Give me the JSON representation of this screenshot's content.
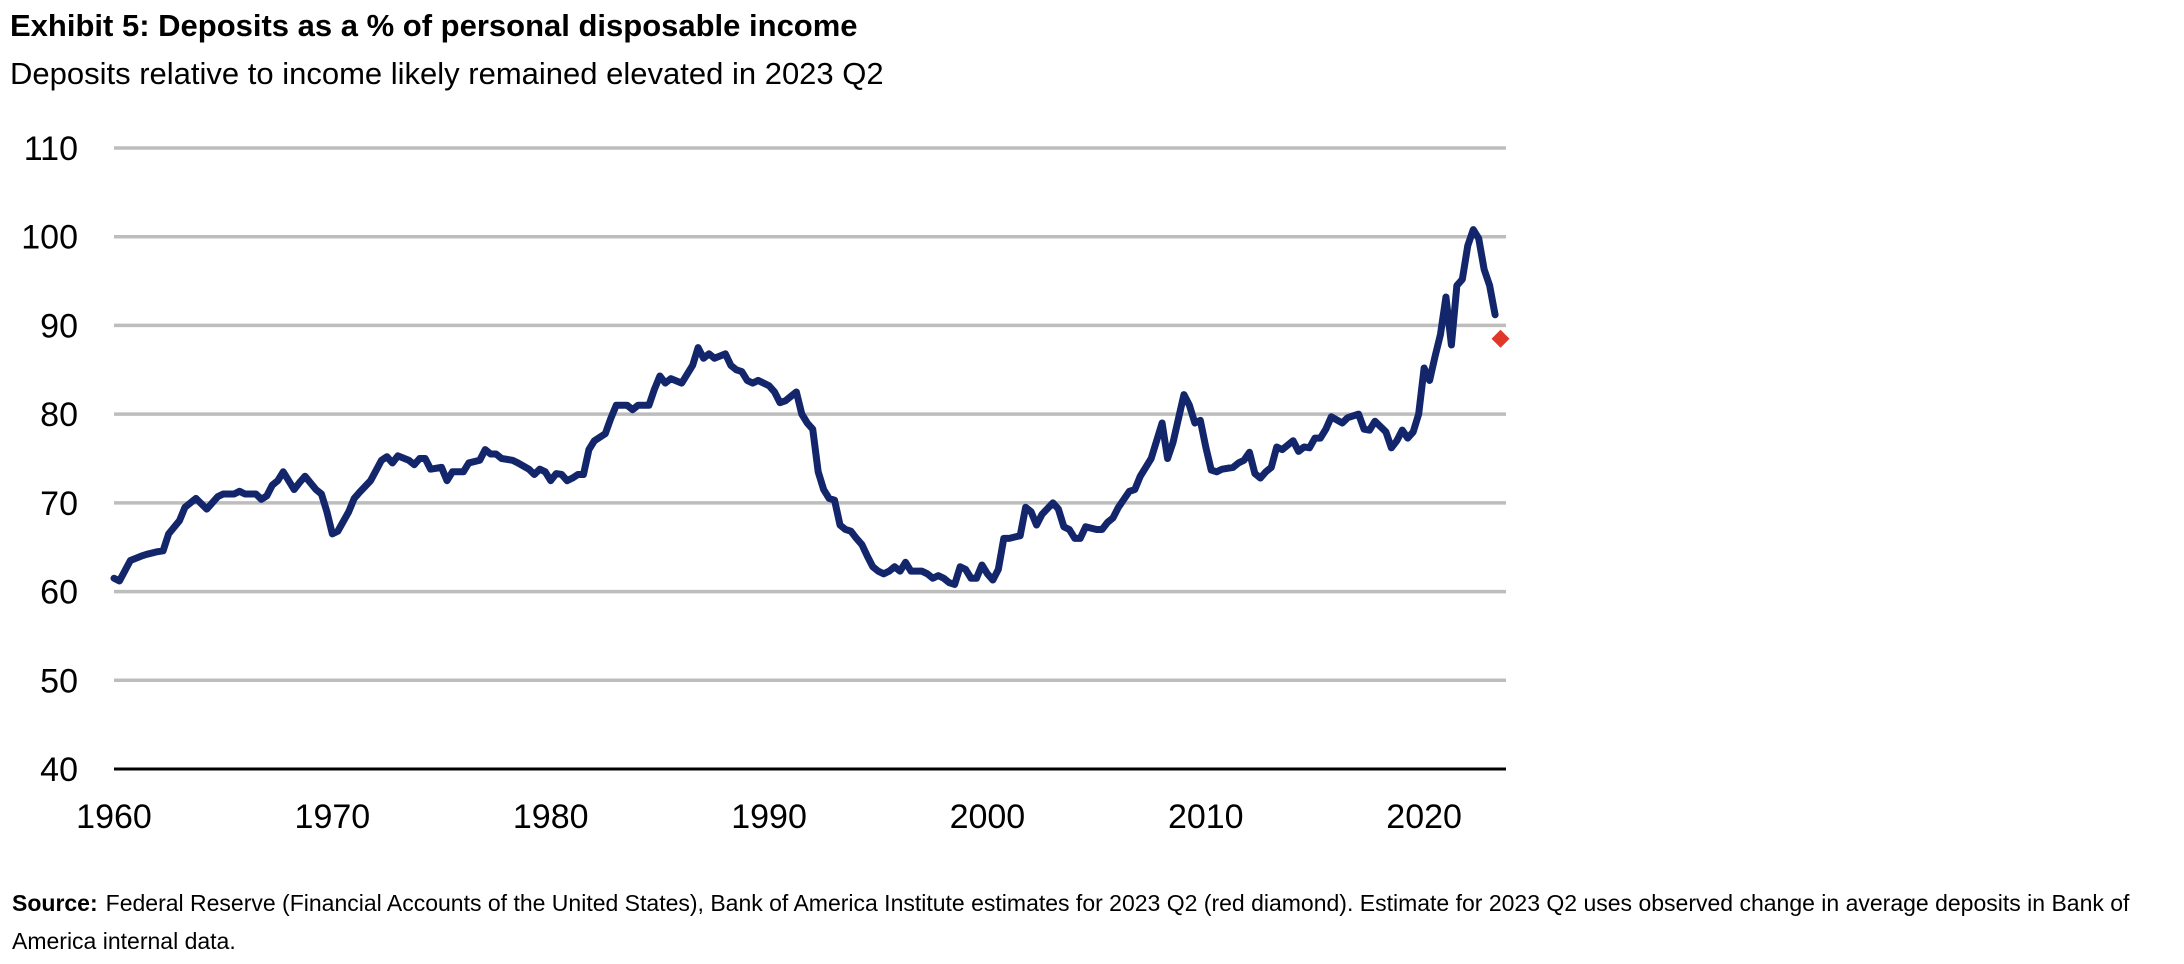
{
  "chart_data": {
    "type": "line",
    "title": "Exhibit 5: Deposits as a % of personal disposable income",
    "subtitle": "Deposits relative to income likely remained elevated in 2023 Q2",
    "source_label": "Source:",
    "source": "Federal Reserve (Financial Accounts of the United States), Bank of America Institute estimates for 2023 Q2 (red diamond). Estimate for 2023 Q2 uses observed change in average deposits in Bank of America internal data.",
    "xlim": [
      1960,
      2023.75
    ],
    "xticks": [
      1960,
      1970,
      1980,
      1990,
      2000,
      2010,
      2020
    ],
    "ylim": [
      40,
      110
    ],
    "yticks": [
      40,
      50,
      60,
      70,
      80,
      90,
      100,
      110
    ],
    "grid": true,
    "series": [
      {
        "color": "#13266b",
        "marker": "none",
        "x": [
          1960,
          1960.25,
          1960.75,
          1961.25,
          1961.5,
          1962,
          1962.25,
          1962.5,
          1963,
          1963.25,
          1963.75,
          1964.25,
          1964.75,
          1965,
          1965.5,
          1965.75,
          1966,
          1966.5,
          1966.75,
          1967,
          1967.25,
          1967.5,
          1967.75,
          1968,
          1968.25,
          1968.5,
          1968.75,
          1969.25,
          1969.5,
          1969.75,
          1970,
          1970.25,
          1970.75,
          1971,
          1971.25,
          1971.75,
          1972.25,
          1972.5,
          1972.75,
          1973,
          1973.5,
          1973.75,
          1974,
          1974.25,
          1974.5,
          1975,
          1975.25,
          1975.5,
          1976,
          1976.25,
          1976.75,
          1977,
          1977.25,
          1977.5,
          1977.75,
          1978.25,
          1978.5,
          1979,
          1979.25,
          1979.5,
          1979.75,
          1980,
          1980.25,
          1980.5,
          1980.75,
          1981,
          1981.25,
          1981.5,
          1981.75,
          1982,
          1982.5,
          1982.75,
          1983,
          1983.5,
          1983.75,
          1984,
          1984.5,
          1984.75,
          1985,
          1985.25,
          1985.5,
          1986,
          1986.25,
          1986.5,
          1986.75,
          1987,
          1987.25,
          1987.5,
          1988,
          1988.25,
          1988.5,
          1988.75,
          1989,
          1989.25,
          1989.5,
          1990,
          1990.25,
          1990.5,
          1990.75,
          1991,
          1991.25,
          1991.5,
          1991.75,
          1992,
          1992.25,
          1992.5,
          1992.75,
          1993,
          1993.25,
          1993.5,
          1993.75,
          1994,
          1994.25,
          1994.5,
          1994.75,
          1995,
          1995.25,
          1995.5,
          1995.75,
          1996,
          1996.25,
          1996.5,
          1996.75,
          1997,
          1997.25,
          1997.5,
          1997.75,
          1998,
          1998.25,
          1998.5,
          1998.75,
          1999,
          1999.25,
          1999.5,
          1999.75,
          2000,
          2000.25,
          2000.5,
          2000.75,
          2001,
          2001.5,
          2001.75,
          2002,
          2002.25,
          2002.5,
          2003,
          2003.25,
          2003.5,
          2003.75,
          2004,
          2004.25,
          2004.5,
          2005,
          2005.25,
          2005.5,
          2005.75,
          2006,
          2006.5,
          2006.75,
          2007,
          2007.5,
          2008,
          2008.25,
          2008.5,
          2008.75,
          2009,
          2009.25,
          2009.5,
          2009.75,
          2010,
          2010.25,
          2010.5,
          2010.75,
          2011.25,
          2011.5,
          2011.75,
          2012,
          2012.25,
          2012.5,
          2012.75,
          2013,
          2013.25,
          2013.5,
          2013.75,
          2014,
          2014.25,
          2014.5,
          2014.75,
          2015,
          2015.25,
          2015.5,
          2015.75,
          2016.25,
          2016.5,
          2017,
          2017.25,
          2017.5,
          2017.75,
          2018.25,
          2018.5,
          2018.75,
          2019,
          2019.25,
          2019.5,
          2019.75,
          2020,
          2020.25,
          2020.5,
          2020.75,
          2021,
          2021.25,
          2021.5,
          2021.75,
          2022,
          2022.25,
          2022.5,
          2022.75,
          2023,
          2023.25
        ],
        "values": [
          61.5,
          61.2,
          63.5,
          64,
          64.2,
          64.5,
          64.6,
          66.5,
          68,
          69.5,
          70.5,
          69.3,
          70.7,
          71,
          71,
          71.3,
          71,
          71,
          70.4,
          70.8,
          72,
          72.5,
          73.5,
          72.5,
          71.5,
          72.3,
          73,
          71.5,
          71,
          69,
          66.5,
          66.8,
          69,
          70.5,
          71.2,
          72.5,
          74.8,
          75.2,
          74.5,
          75.3,
          74.8,
          74.3,
          75,
          75,
          73.8,
          74,
          72.5,
          73.5,
          73.5,
          74.5,
          74.8,
          76,
          75.5,
          75.5,
          75,
          74.8,
          74.5,
          73.8,
          73.2,
          73.8,
          73.5,
          72.5,
          73.3,
          73.2,
          72.5,
          72.8,
          73.2,
          73.2,
          76,
          77,
          77.8,
          79.5,
          81,
          81,
          80.5,
          81,
          81,
          82.8,
          84.3,
          83.5,
          84,
          83.5,
          84.5,
          85.5,
          87.5,
          86.3,
          86.8,
          86.3,
          86.8,
          85.5,
          85,
          84.8,
          83.8,
          83.5,
          83.8,
          83.2,
          82.5,
          81.3,
          81.5,
          82,
          82.5,
          80,
          79,
          78.3,
          73.5,
          71.5,
          70.5,
          70.3,
          67.5,
          67,
          66.8,
          66,
          65.3,
          64,
          62.8,
          62.3,
          62,
          62.3,
          62.8,
          62.3,
          63.3,
          62.3,
          62.3,
          62.3,
          62,
          61.5,
          61.8,
          61.5,
          61,
          60.8,
          62.8,
          62.5,
          61.5,
          61.5,
          63,
          62,
          61.3,
          62.5,
          66,
          66,
          66.3,
          69.5,
          69,
          67.5,
          68.7,
          70,
          69.3,
          67.3,
          67,
          66,
          66,
          67.3,
          67,
          67,
          67.8,
          68.3,
          69.5,
          71.3,
          71.5,
          73,
          75,
          79,
          75,
          76.8,
          79.5,
          82.2,
          81,
          79,
          79.3,
          76.3,
          73.7,
          73.5,
          73.8,
          74,
          74.5,
          74.8,
          75.7,
          73.3,
          72.8,
          73.5,
          74,
          76.3,
          76,
          76.5,
          77,
          75.8,
          76.3,
          76.2,
          77.3,
          77.3,
          78.3,
          79.7,
          79,
          79.6,
          80,
          78.3,
          78.2,
          79.2,
          78,
          76.2,
          77,
          78.2,
          77.3,
          78,
          80,
          85.2,
          83.8,
          86.5,
          89,
          93.2,
          87.8,
          94.5,
          95.2,
          99,
          100.8,
          99.8,
          96.3,
          94.5,
          91.2
        ]
      },
      {
        "color": "#e0372b",
        "marker": "diamond",
        "x": [
          2023.5
        ],
        "values": [
          88.5
        ]
      }
    ]
  }
}
